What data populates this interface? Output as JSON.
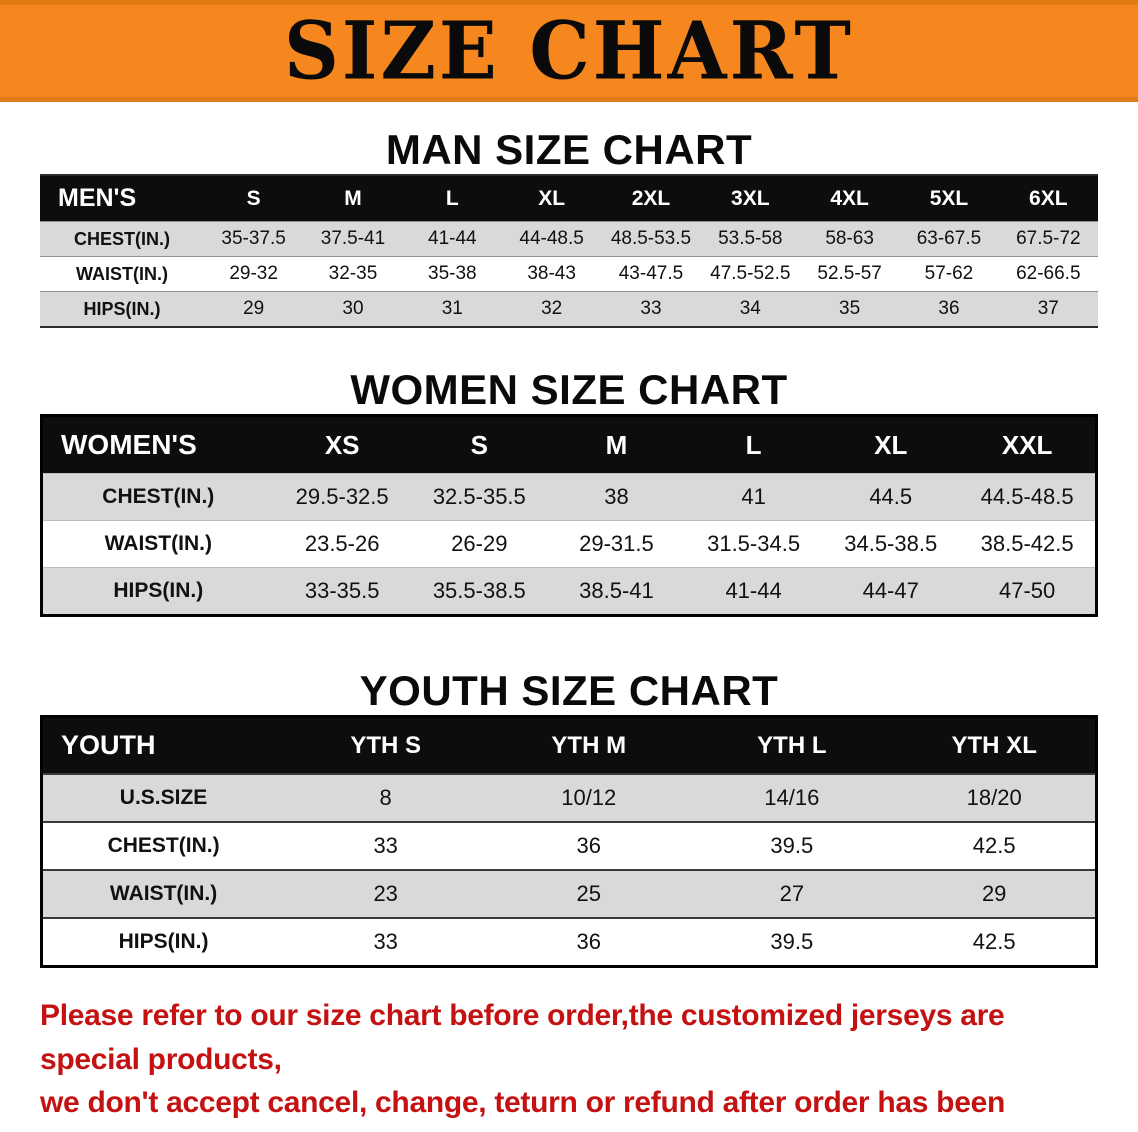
{
  "banner": {
    "title": "SIZE CHART"
  },
  "sections": {
    "men": {
      "heading": "MAN SIZE CHART",
      "table": {
        "header": [
          "MEN'S",
          "S",
          "M",
          "L",
          "XL",
          "2XL",
          "3XL",
          "4XL",
          "5XL",
          "6XL"
        ],
        "rows": [
          [
            "CHEST(IN.)",
            "35-37.5",
            "37.5-41",
            "41-44",
            "44-48.5",
            "48.5-53.5",
            "53.5-58",
            "58-63",
            "63-67.5",
            "67.5-72"
          ],
          [
            "WAIST(IN.)",
            "29-32",
            "32-35",
            "35-38",
            "38-43",
            "43-47.5",
            "47.5-52.5",
            "52.5-57",
            "57-62",
            "62-66.5"
          ],
          [
            "HIPS(IN.)",
            "29",
            "30",
            "31",
            "32",
            "33",
            "34",
            "35",
            "36",
            "37"
          ]
        ]
      }
    },
    "women": {
      "heading": "WOMEN SIZE CHART",
      "table": {
        "header": [
          "WOMEN'S",
          "XS",
          "S",
          "M",
          "L",
          "XL",
          "XXL"
        ],
        "rows": [
          [
            "CHEST(IN.)",
            "29.5-32.5",
            "32.5-35.5",
            "38",
            "41",
            "44.5",
            "44.5-48.5"
          ],
          [
            "WAIST(IN.)",
            "23.5-26",
            "26-29",
            "29-31.5",
            "31.5-34.5",
            "34.5-38.5",
            "38.5-42.5"
          ],
          [
            "HIPS(IN.)",
            "33-35.5",
            "35.5-38.5",
            "38.5-41",
            "41-44",
            "44-47",
            "47-50"
          ]
        ]
      }
    },
    "youth": {
      "heading": "YOUTH SIZE CHART",
      "table": {
        "header": [
          "YOUTH",
          "YTH S",
          "YTH M",
          "YTH L",
          "YTH XL"
        ],
        "rows": [
          [
            "U.S.SIZE",
            "8",
            "10/12",
            "14/16",
            "18/20"
          ],
          [
            "CHEST(IN.)",
            "33",
            "36",
            "39.5",
            "42.5"
          ],
          [
            "WAIST(IN.)",
            "23",
            "25",
            "27",
            "29"
          ],
          [
            "HIPS(IN.)",
            "33",
            "36",
            "39.5",
            "42.5"
          ]
        ]
      }
    }
  },
  "footer": {
    "line1": "Please refer to our size chart before order,the customized jerseys are special products,",
    "line2": "we don't accept cancel, change, teturn or refund after order has been placed!"
  },
  "colors": {
    "banner_orange": "#f6861e",
    "table_header_black": "#0d0d0d",
    "row_gray": "#d9d9d9",
    "footer_red": "#c41212"
  }
}
